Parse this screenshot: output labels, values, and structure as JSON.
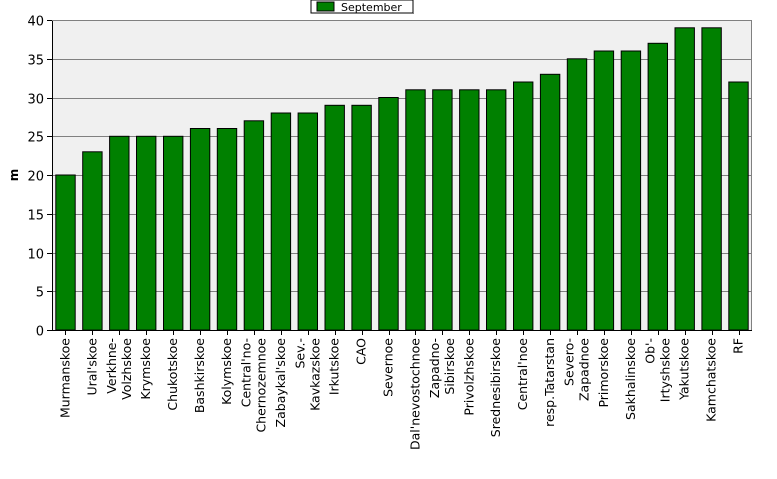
{
  "chart_data": {
    "type": "bar",
    "title": "",
    "xlabel": "",
    "ylabel": "m",
    "ylim": [
      0,
      40
    ],
    "yticks": [
      0,
      5,
      10,
      15,
      20,
      25,
      30,
      35,
      40
    ],
    "grid": true,
    "legend_position": "top-center",
    "colors": {
      "bar": "#008000",
      "plot_background": "#f0f0f0",
      "grid": "#808080"
    },
    "categories": [
      [
        "Murmanskoe"
      ],
      [
        "Ural'skoe"
      ],
      [
        "Verkhne-",
        "Volzhskoe"
      ],
      [
        "Krymskoe"
      ],
      [
        "Chukotskoe"
      ],
      [
        "Bashkirskoe"
      ],
      [
        "Kolymskoe"
      ],
      [
        "Central'no-",
        "Chernozemnoe"
      ],
      [
        "Zabaykal'skoe"
      ],
      [
        "Sev.-",
        "Kavkazskoe"
      ],
      [
        "Irkutskoe"
      ],
      [
        "CAO"
      ],
      [
        "Severnoe"
      ],
      [
        "Dal'nevostochnoe"
      ],
      [
        "Zapadno-",
        "Sibirskoe"
      ],
      [
        "Privolzhskoe"
      ],
      [
        "Srednesibirskoe"
      ],
      [
        "Central'noe"
      ],
      [
        "resp.Tatarstan"
      ],
      [
        "Severo-",
        "Zapadnoe"
      ],
      [
        "Primorskoe"
      ],
      [
        "Sakhalinskoe"
      ],
      [
        "Ob'-",
        "Irtyshskoe"
      ],
      [
        "Yakutskoe"
      ],
      [
        "Kamchatskoe"
      ],
      [
        "RF"
      ]
    ],
    "series": [
      {
        "name": "September",
        "values": [
          20,
          23,
          25,
          25,
          25,
          26,
          26,
          27,
          28,
          28,
          29,
          29,
          30,
          31,
          31,
          31,
          31,
          32,
          33,
          35,
          36,
          36,
          37,
          39,
          39,
          32
        ]
      }
    ]
  }
}
